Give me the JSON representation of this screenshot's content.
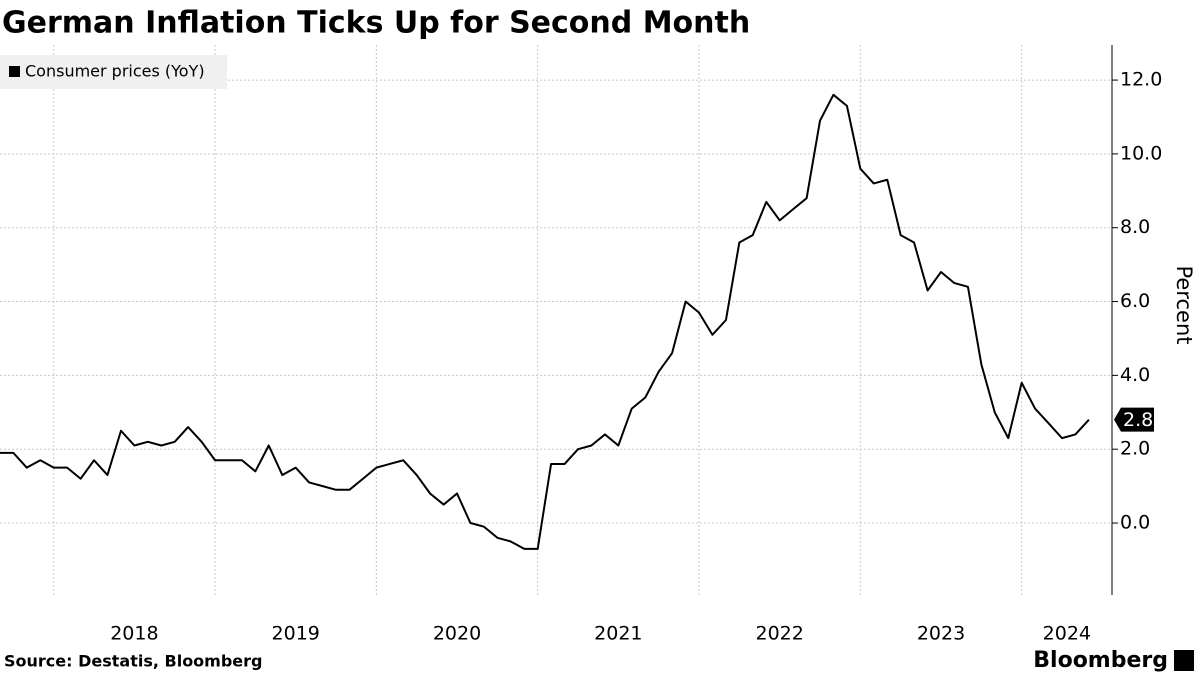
{
  "chart_data": {
    "type": "line",
    "title": "German Inflation Ticks Up for Second Month",
    "y_label": "Percent",
    "source": "Source: Destatis, Bloomberg",
    "brand": "Bloomberg",
    "x": [
      2017.667,
      2017.75,
      2017.833,
      2017.917,
      2018,
      2018.083,
      2018.167,
      2018.25,
      2018.333,
      2018.417,
      2018.5,
      2018.583,
      2018.667,
      2018.75,
      2018.833,
      2018.917,
      2019,
      2019.083,
      2019.167,
      2019.25,
      2019.333,
      2019.417,
      2019.5,
      2019.583,
      2019.667,
      2019.75,
      2019.833,
      2019.917,
      2020,
      2020.083,
      2020.167,
      2020.25,
      2020.333,
      2020.417,
      2020.5,
      2020.583,
      2020.667,
      2020.75,
      2020.833,
      2020.917,
      2021,
      2021.083,
      2021.167,
      2021.25,
      2021.333,
      2021.417,
      2021.5,
      2021.583,
      2021.667,
      2021.75,
      2021.833,
      2021.917,
      2022,
      2022.083,
      2022.167,
      2022.25,
      2022.333,
      2022.417,
      2022.5,
      2022.583,
      2022.667,
      2022.75,
      2022.833,
      2022.917,
      2023,
      2023.083,
      2023.167,
      2023.25,
      2023.333,
      2023.417,
      2023.5,
      2023.583,
      2023.667,
      2023.75,
      2023.833,
      2023.917,
      2024,
      2024.083,
      2024.167,
      2024.25,
      2024.333,
      2024.417
    ],
    "series": [
      {
        "name": "Consumer prices (YoY)",
        "color": "#000000",
        "values": [
          1.9,
          1.9,
          1.5,
          1.7,
          1.5,
          1.5,
          1.2,
          1.7,
          1.3,
          2.5,
          2.1,
          2.2,
          2.1,
          2.2,
          2.6,
          2.2,
          1.7,
          1.7,
          1.7,
          1.4,
          2.1,
          1.3,
          1.5,
          1.1,
          1.0,
          0.9,
          0.9,
          1.2,
          1.5,
          1.6,
          1.7,
          1.3,
          0.8,
          0.5,
          0.8,
          0.0,
          -0.1,
          -0.4,
          -0.5,
          -0.7,
          -0.7,
          1.6,
          1.6,
          2.0,
          2.1,
          2.4,
          2.1,
          3.1,
          3.4,
          4.1,
          4.6,
          6.0,
          5.7,
          5.1,
          5.5,
          7.6,
          7.8,
          8.7,
          8.2,
          8.5,
          8.8,
          10.9,
          11.6,
          11.3,
          9.6,
          9.2,
          9.3,
          7.8,
          7.6,
          6.3,
          6.8,
          6.5,
          6.4,
          4.3,
          3.0,
          2.3,
          3.8,
          3.1,
          2.7,
          2.3,
          2.4,
          2.8
        ]
      }
    ],
    "xlim": [
      2017.667,
      2024.56
    ],
    "xticks": [
      2018,
      2019,
      2020,
      2021,
      2022,
      2023,
      2024
    ],
    "ylim": [
      -1.95,
      12.95
    ],
    "yticks": [
      {
        "value": 0,
        "label": "0.0"
      },
      {
        "value": 2,
        "label": "2.0"
      },
      {
        "value": 4,
        "label": "4.0"
      },
      {
        "value": 6,
        "label": "6.0"
      },
      {
        "value": 8,
        "label": "8.0"
      },
      {
        "value": 10,
        "label": "10.0"
      },
      {
        "value": 12,
        "label": "12.0"
      }
    ],
    "grid": true,
    "legend": "top-left"
  }
}
